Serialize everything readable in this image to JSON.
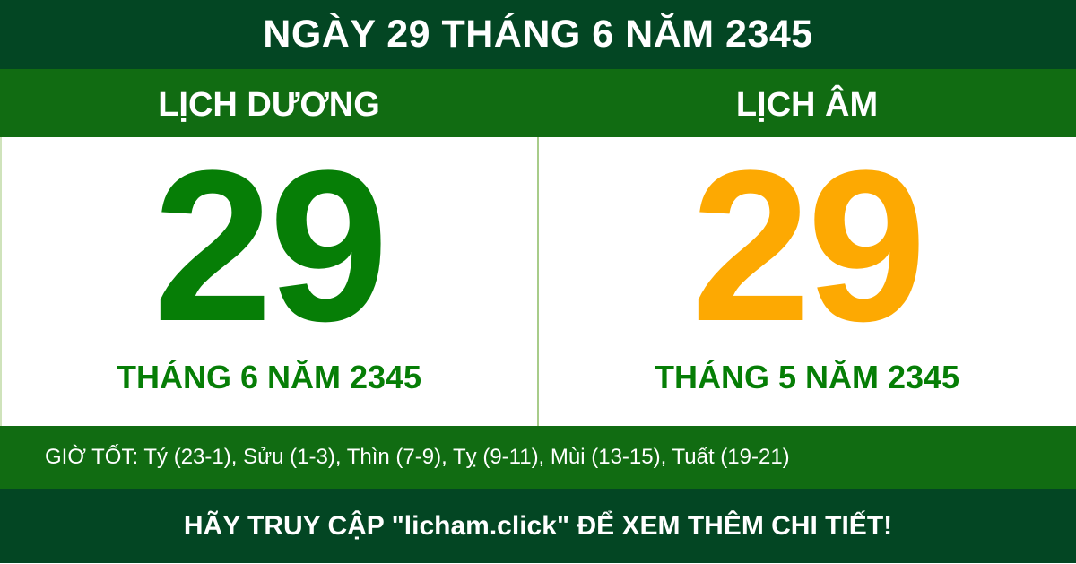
{
  "title": "NGÀY 29 THÁNG 6 NĂM 2345",
  "solar": {
    "heading": "LỊCH DƯƠNG",
    "day": "29",
    "month_year": "THÁNG 6 NĂM 2345",
    "color": "#067e06"
  },
  "lunar": {
    "heading": "LỊCH ÂM",
    "day": "29",
    "month_year": "THÁNG 5 NĂM 2345",
    "color": "#fda902"
  },
  "good_hours": "GIỜ TỐT: Tý (23-1), Sửu (1-3), Thìn (7-9), Tỵ (9-11), Mùi (13-15), Tuất (19-21)",
  "footer": "HÃY TRUY CẬP \"licham.click\" ĐỂ XEM THÊM CHI TIẾT!",
  "colors": {
    "dark_green": "#034623",
    "green": "#116c12"
  }
}
